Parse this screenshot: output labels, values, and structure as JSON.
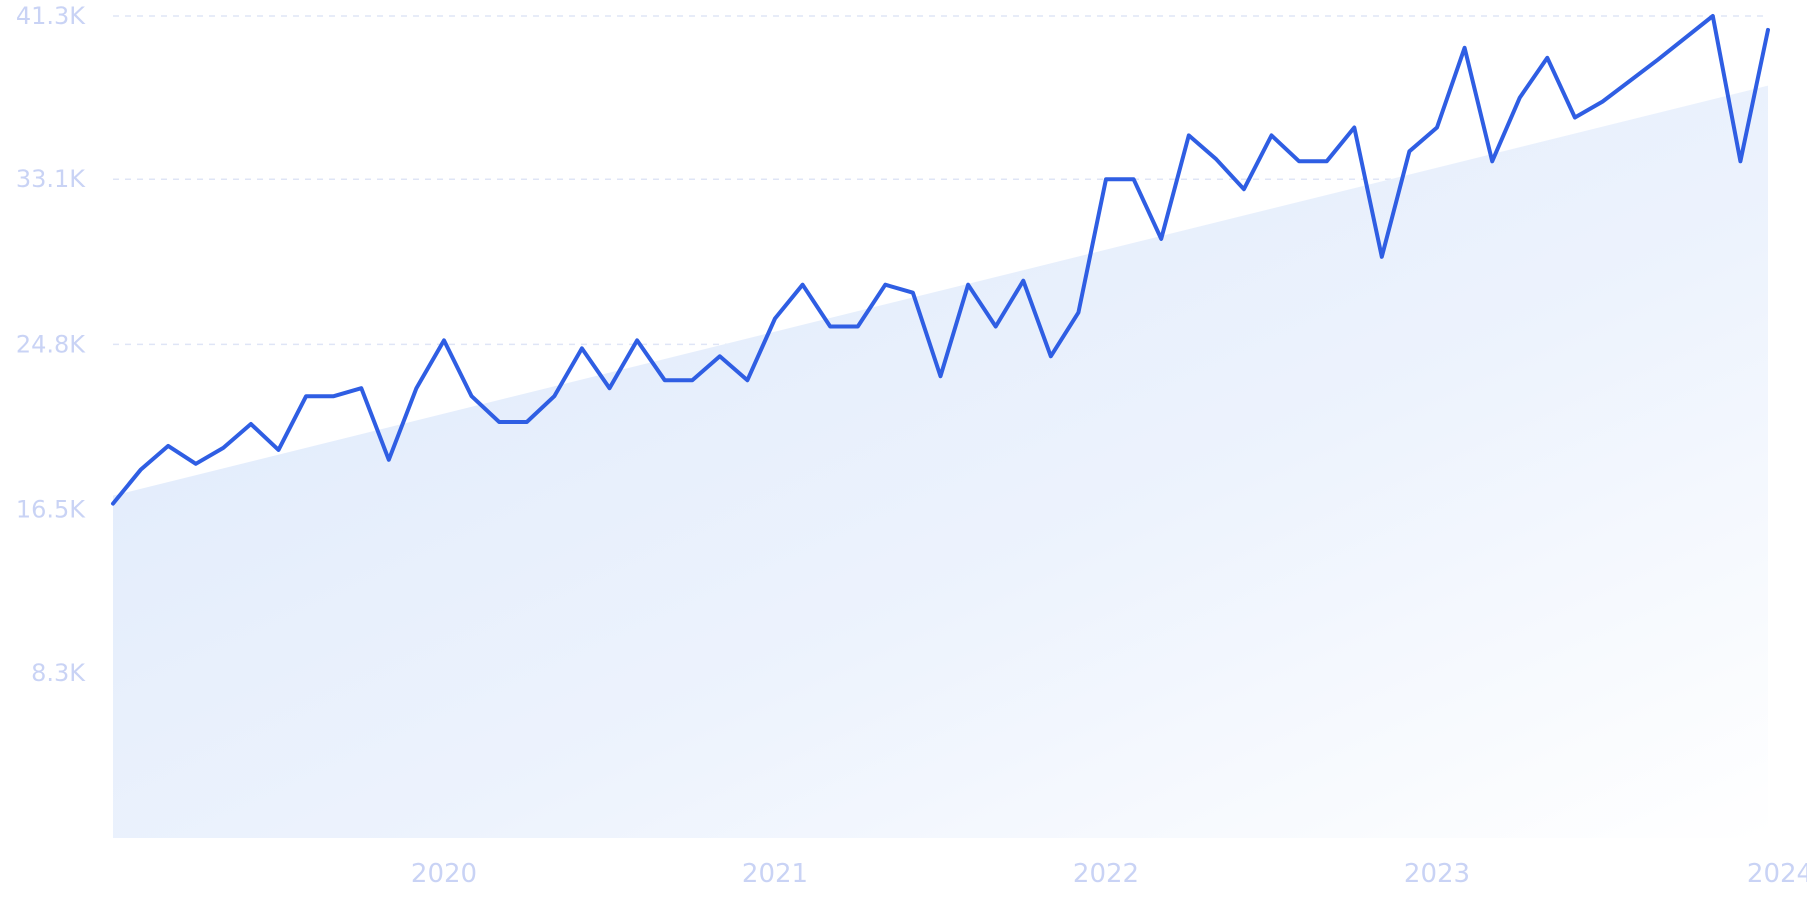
{
  "chart_data": {
    "type": "line",
    "title": "",
    "xlabel": "",
    "ylabel": "",
    "y_ticks": [
      "8.3K",
      "16.5K",
      "24.8K",
      "33.1K",
      "41.3K"
    ],
    "y_tick_values": [
      8300,
      16500,
      24800,
      33100,
      41300
    ],
    "x_ticks": [
      "2020",
      "2021",
      "2022",
      "2023",
      "2024"
    ],
    "ylim": [
      0,
      41300
    ],
    "xlim": [
      "2019-01",
      "2024-01"
    ],
    "grid": true,
    "legend": "none",
    "colors": {
      "line": "#2f5ee3",
      "trend_fill": "#dce8fb",
      "grid": "#dfe5f6",
      "tick_text": "#c9d3f5"
    },
    "series": [
      {
        "values": [
          16800,
          18500,
          19700,
          18800,
          19600,
          20800,
          19500,
          22200,
          22200,
          22600,
          19000,
          22600,
          25000,
          22200,
          20900,
          20900,
          22200,
          24600,
          22600,
          25000,
          23000,
          23000,
          24200,
          23000,
          26100,
          27800,
          25700,
          25700,
          27800,
          27400,
          23200,
          27800,
          25700,
          28000,
          24200,
          26400,
          33100,
          33100,
          30100,
          35300,
          34100,
          32600,
          35300,
          34000,
          34000,
          35700,
          29200,
          34500,
          35700,
          39700,
          34000,
          37200,
          39200,
          36200,
          37000,
          39100,
          41300,
          34000,
          40600
        ]
      },
      {
        "values": [
          17200,
          37800
        ]
      }
    ],
    "x_dates": [
      "2019-01",
      "2019-02",
      "2019-03",
      "2019-04",
      "2019-05",
      "2019-06",
      "2019-07",
      "2019-08",
      "2019-09",
      "2019-10",
      "2019-11",
      "2019-12",
      "2020-01",
      "2020-02",
      "2020-03",
      "2020-04",
      "2020-05",
      "2020-06",
      "2020-07",
      "2020-08",
      "2020-09",
      "2020-10",
      "2020-11",
      "2020-12",
      "2021-01",
      "2021-02",
      "2021-03",
      "2021-04",
      "2021-05",
      "2021-06",
      "2021-07",
      "2021-08",
      "2021-09",
      "2021-10",
      "2021-11",
      "2021-12",
      "2022-01",
      "2022-02",
      "2022-03",
      "2022-04",
      "2022-05",
      "2022-06",
      "2022-07",
      "2022-08",
      "2022-09",
      "2022-10",
      "2022-11",
      "2022-12",
      "2023-01",
      "2023-02",
      "2023-03",
      "2023-04",
      "2023-05",
      "2023-06",
      "2023-07",
      "2023-09",
      "2023-11",
      "2023-12",
      "2024-01"
    ],
    "trend_x": [
      "2019-01",
      "2024-01"
    ]
  }
}
